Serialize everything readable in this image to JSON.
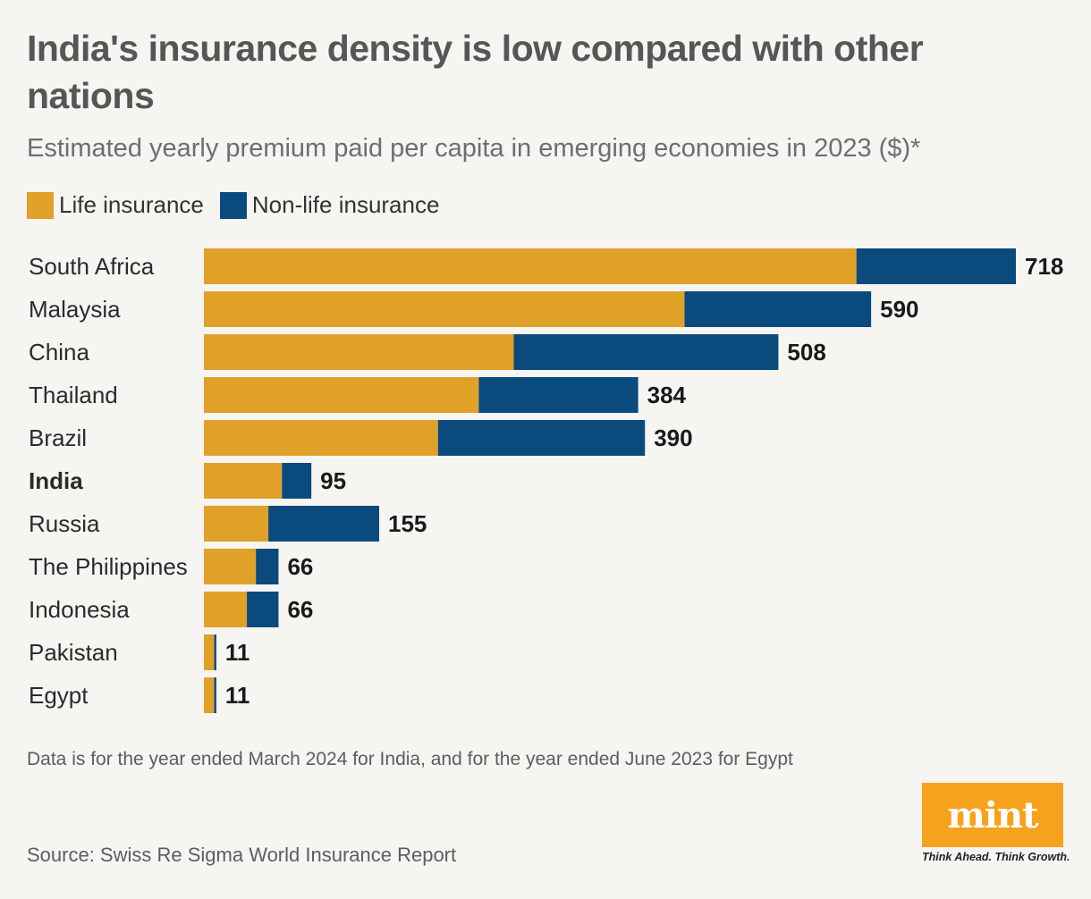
{
  "title": "India's insurance density is low compared with other nations",
  "subtitle": "Estimated yearly premium paid per capita in emerging economies in 2023 ($)*",
  "legend": {
    "life_label": "Life insurance",
    "nonlife_label": "Non-life insurance"
  },
  "colors": {
    "life": "#e0a128",
    "nonlife": "#0b4a7d",
    "background": "#f6f5f1",
    "logo": "#f7a21c"
  },
  "chart_data": {
    "type": "bar",
    "orientation": "horizontal",
    "stacked": true,
    "categories": [
      "South Africa",
      "Malaysia",
      "China",
      "Thailand",
      "Brazil",
      "India",
      "Russia",
      "The Philippines",
      "Indonesia",
      "Pakistan",
      "Egypt"
    ],
    "highlight": "India",
    "series": [
      {
        "name": "Life insurance",
        "values": [
          577,
          425,
          274,
          243,
          207,
          69,
          57,
          46,
          38,
          9,
          9
        ]
      },
      {
        "name": "Non-life insurance",
        "values": [
          141,
          165,
          234,
          141,
          183,
          26,
          98,
          20,
          28,
          2,
          2
        ]
      }
    ],
    "totals": [
      718,
      590,
      508,
      384,
      390,
      95,
      155,
      66,
      66,
      11,
      11
    ],
    "xlim": [
      0,
      718
    ]
  },
  "footnote": "Data is for the year ended March 2024 for India, and for the year ended June 2023 for Egypt",
  "source": "Source: Swiss Re Sigma World Insurance Report",
  "logo": {
    "text": "mint",
    "tagline": "Think Ahead. Think Growth."
  }
}
